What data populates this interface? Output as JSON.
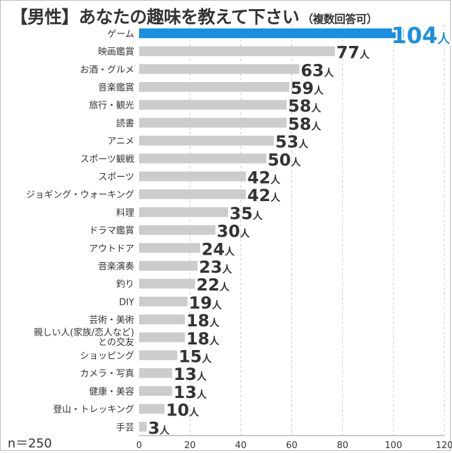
{
  "title": "【男性】あなたの趣味を教えて下さい",
  "subtitle": "（複数回答可）",
  "n_label": "n＝250",
  "value_unit": "人",
  "colors": {
    "highlight": "#1a8fe0",
    "bar": "#cccccc",
    "text": "#333333",
    "grid": "#cfcfcf"
  },
  "chart_data": {
    "type": "bar",
    "orientation": "horizontal",
    "categories": [
      "ゲーム",
      "映画鑑賞",
      "お酒・グルメ",
      "音楽鑑賞",
      "旅行・観光",
      "読書",
      "アニメ",
      "スポーツ観戦",
      "スポーツ",
      "ジョギング・ウォーキング",
      "料理",
      "ドラマ鑑賞",
      "アウトドア",
      "音楽演奏",
      "釣り",
      "DIY",
      "芸術・美術",
      "親しい人(家族/恋人など)との交友",
      "ショッピング",
      "カメラ・写真",
      "健康・美容",
      "登山・トレッキング",
      "手芸"
    ],
    "values": [
      104,
      77,
      63,
      59,
      58,
      58,
      53,
      50,
      42,
      42,
      35,
      30,
      24,
      23,
      22,
      19,
      18,
      18,
      15,
      13,
      13,
      10,
      3
    ],
    "xlim": [
      0,
      120
    ],
    "xticks": [
      "0",
      "20",
      "40",
      "60",
      "80",
      "100",
      "120"
    ],
    "grid": "vertical-dashed",
    "highlight_index": 0
  }
}
